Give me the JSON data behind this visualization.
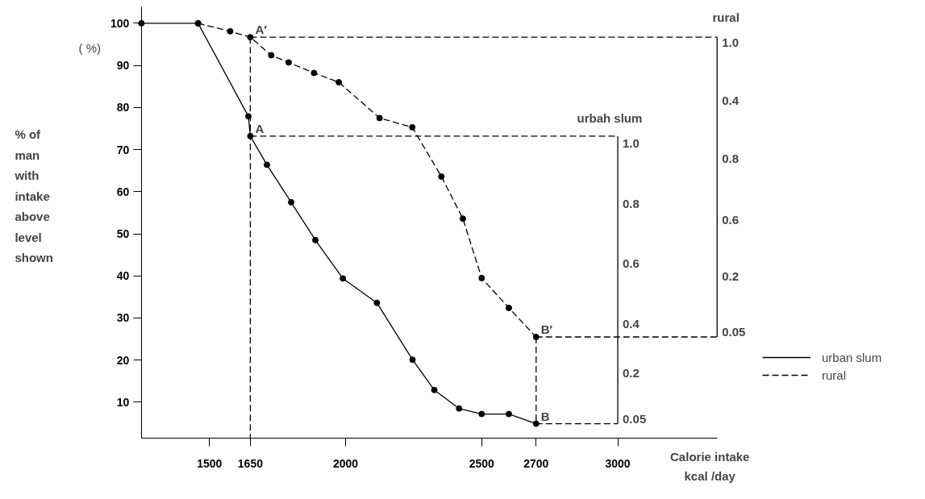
{
  "chart_data": {
    "type": "line",
    "xlabel": "Calorie intake\nkcal /day",
    "ylabel": "% of\nman\nwith\nintake\nabove\nlevel\nshown",
    "xlim": [
      1250,
      3365
    ],
    "xticks": [
      1500,
      1650,
      2000,
      2500,
      2700,
      3000
    ],
    "ylim": [
      1.4,
      104
    ],
    "yticks": [
      10,
      20,
      30,
      40,
      50,
      60,
      70,
      80,
      90,
      100
    ],
    "grid": false,
    "legend": "right",
    "marker": "circle",
    "series": [
      {
        "name": "urban slum",
        "color": "#000000",
        "line_style": "solid",
        "x": [
          1250,
          1458,
          1643,
          1650,
          1711,
          1800,
          1889,
          1990,
          2115,
          2246,
          2326,
          2417,
          2500,
          2600,
          2700
        ],
        "values": [
          100,
          100,
          77.9,
          73.2,
          66.4,
          57.5,
          48.5,
          39.4,
          33.6,
          20.1,
          12.9,
          8.5,
          7.2,
          7.2,
          4.9
        ]
      },
      {
        "name": "rural",
        "color": "#000000",
        "line_style": "dashed",
        "x": [
          1458,
          1576,
          1650,
          1727,
          1791,
          1884,
          1975,
          2125,
          2245,
          2352,
          2431,
          2500,
          2600,
          2700
        ],
        "values": [
          100,
          98.1,
          96.7,
          92.4,
          90.7,
          88.2,
          86.0,
          77.5,
          75.3,
          63.6,
          53.6,
          39.5,
          32.4,
          25.5
        ]
      },
      {
        "color": "#000000",
        "line_style": "dashed",
        "marker": "none",
        "x": [
          1650,
          3000
        ],
        "values": [
          73.2,
          73.2
        ]
      },
      {
        "color": "#000000",
        "line_style": "dashed",
        "marker": "none",
        "x": [
          2700,
          3000
        ],
        "values": [
          4.9,
          4.9
        ]
      },
      {
        "color": "#000000",
        "line_style": "dashed",
        "marker": "none",
        "x": [
          1650,
          3365
        ],
        "values": [
          96.7,
          96.7
        ]
      },
      {
        "color": "#000000",
        "line_style": "dashed",
        "marker": "none",
        "x": [
          2700,
          3365
        ],
        "values": [
          25.5,
          25.5
        ]
      },
      {
        "color": "#000000",
        "line_style": "dashed",
        "marker": "none",
        "x": [
          1650,
          1650
        ],
        "values": [
          96.7,
          1.4
        ]
      },
      {
        "color": "#000000",
        "line_style": "dashed",
        "marker": "none",
        "x": [
          2700,
          2700
        ],
        "values": [
          25.5,
          4.9
        ]
      },
      {
        "color": "#000000",
        "line_style": "solid",
        "marker": "none",
        "x": [
          3000,
          3000
        ],
        "values": [
          73.2,
          4.9
        ]
      },
      {
        "color": "#000000",
        "line_style": "solid",
        "marker": "none",
        "x": [
          3365,
          3365
        ],
        "values": [
          96.7,
          25.5
        ]
      }
    ],
    "annotations": [
      "( %)",
      "urbah slum",
      "rural",
      {
        "text": "A",
        "x": 1650,
        "y": 73.2
      },
      {
        "text": "A′",
        "x": 1650,
        "y": 96.7
      },
      {
        "text": "B",
        "x": 2700,
        "y": 4.9
      },
      {
        "text": "B′",
        "x": 2700,
        "y": 25.5
      },
      {
        "text": "1.0",
        "x": 3000,
        "y": 70.3
      },
      {
        "text": "0.8",
        "x": 3000,
        "y": 56
      },
      {
        "text": "0.6",
        "x": 3000,
        "y": 41.7
      },
      {
        "text": "0.4",
        "x": 3000,
        "y": 27.5
      },
      {
        "text": "0.2",
        "x": 3000,
        "y": 15.8
      },
      {
        "text": "0.05",
        "x": 3000,
        "y": 4.9
      },
      {
        "text": "1.0",
        "x": 3365,
        "y": 94.2
      },
      {
        "text": "0.4",
        "x": 3365,
        "y": 80.5
      },
      {
        "text": "0.8",
        "x": 3365,
        "y": 66.7
      },
      {
        "text": "0.6",
        "x": 3365,
        "y": 52.1
      },
      {
        "text": "0.2",
        "x": 3365,
        "y": 38.8
      },
      {
        "text": "0.05",
        "x": 3365,
        "y": 25.5
      }
    ]
  }
}
